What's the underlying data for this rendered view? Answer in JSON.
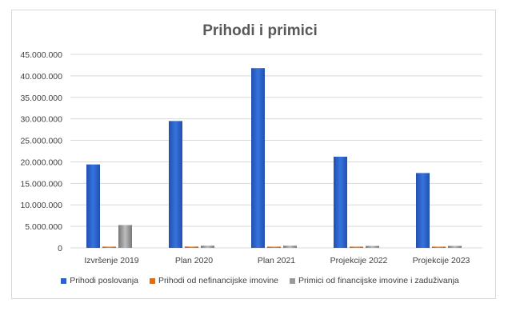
{
  "chart_data": {
    "type": "bar",
    "title": "Prihodi i primici",
    "categories": [
      "Izvršenje 2019",
      "Plan 2020",
      "Plan 2021",
      "Projekcije 2022",
      "Projekcije 2023"
    ],
    "series": [
      {
        "name": "Prihodi poslovanja",
        "color": "#2f62c9",
        "values": [
          19400000,
          29500000,
          41800000,
          21200000,
          17400000
        ]
      },
      {
        "name": "Prihodi od nefinancijske imovine",
        "color": "#e46c0a",
        "values": [
          100000,
          300000,
          100000,
          100000,
          100000
        ]
      },
      {
        "name": "Primici od financijske imovine i zaduživanja",
        "color": "#9a9a9a",
        "values": [
          5300000,
          500000,
          500000,
          450000,
          450000
        ]
      }
    ],
    "yticks": [
      "0",
      "5.000.000",
      "10.000.000",
      "15.000.000",
      "20.000.000",
      "25.000.000",
      "30.000.000",
      "35.000.000",
      "40.000.000",
      "45.000.000"
    ],
    "ylim": [
      0,
      45000000
    ],
    "grid": true,
    "legend_position": "bottom"
  }
}
